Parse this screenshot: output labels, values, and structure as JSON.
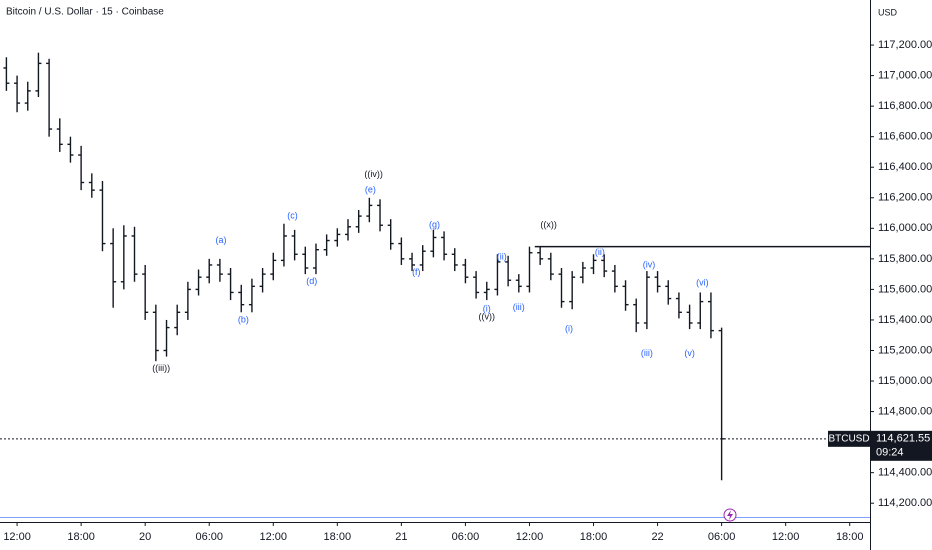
{
  "chart_data": {
    "type": "ohlc",
    "title": "Bitcoin / U.S. Dollar · 15 · Coinbase",
    "currency": "USD",
    "color": "#131722",
    "x": [
      -1,
      0,
      1,
      2,
      3,
      4,
      5,
      6,
      7,
      8,
      9,
      10,
      11,
      12,
      13,
      14,
      15,
      16,
      17,
      18,
      19,
      20,
      21,
      22,
      23,
      24,
      25,
      26,
      27,
      28,
      29,
      30,
      31,
      32,
      33,
      34,
      35,
      36,
      37,
      38,
      39,
      40,
      41,
      42,
      43,
      44,
      45,
      46,
      47,
      48,
      49,
      50,
      51,
      52,
      53,
      54,
      55,
      56,
      57,
      58,
      59,
      60,
      61,
      62,
      63,
      64,
      65,
      66
    ],
    "open": [
      117050,
      116950,
      116820,
      116900,
      117080,
      116650,
      116550,
      116480,
      116300,
      116250,
      115900,
      115650,
      115950,
      115700,
      115450,
      115200,
      115350,
      115450,
      115600,
      115680,
      115760,
      115700,
      115580,
      115500,
      115620,
      115700,
      115790,
      115950,
      115830,
      115740,
      115860,
      115920,
      115960,
      116010,
      116080,
      116150,
      116020,
      115900,
      115800,
      115760,
      115850,
      115940,
      115830,
      115760,
      115680,
      115580,
      115600,
      115780,
      115660,
      115620,
      115840,
      115800,
      115700,
      115520,
      115680,
      115740,
      115790,
      115720,
      115620,
      115500,
      115380,
      115680,
      115620,
      115540,
      115450,
      115380,
      115520,
      115330
    ],
    "high": [
      117120,
      117000,
      116960,
      117150,
      117110,
      116720,
      116600,
      116540,
      116360,
      116310,
      116000,
      116020,
      116010,
      115760,
      115500,
      115400,
      115500,
      115650,
      115730,
      115800,
      115800,
      115740,
      115630,
      115670,
      115740,
      115840,
      116030,
      115990,
      115880,
      115900,
      115960,
      116000,
      116060,
      116120,
      116200,
      116190,
      116060,
      115940,
      115840,
      115890,
      115990,
      115980,
      115870,
      115800,
      115720,
      115650,
      115830,
      115820,
      115700,
      115880,
      115880,
      115840,
      115740,
      115720,
      115780,
      115830,
      115830,
      115760,
      115660,
      115540,
      115720,
      115720,
      115660,
      115580,
      115500,
      115580,
      115580,
      115350
    ],
    "low": [
      116900,
      116760,
      116770,
      116860,
      116600,
      116500,
      116430,
      116250,
      116200,
      115850,
      115480,
      115600,
      115650,
      115400,
      115130,
      115160,
      115300,
      115400,
      115560,
      115640,
      115650,
      115530,
      115450,
      115450,
      115580,
      115660,
      115750,
      115790,
      115700,
      115700,
      115820,
      115880,
      115920,
      115970,
      116040,
      115980,
      115860,
      115760,
      115720,
      115720,
      115810,
      115790,
      115720,
      115640,
      115540,
      115530,
      115560,
      115620,
      115580,
      115580,
      115760,
      115660,
      115480,
      115470,
      115640,
      115700,
      115680,
      115580,
      115460,
      115320,
      115340,
      115580,
      115500,
      115410,
      115340,
      115340,
      115280,
      114350
    ],
    "close": [
      116950,
      116820,
      116900,
      117080,
      116650,
      116550,
      116480,
      116300,
      116250,
      115900,
      115650,
      115950,
      115700,
      115450,
      115200,
      115350,
      115450,
      115600,
      115680,
      115760,
      115700,
      115580,
      115500,
      115620,
      115700,
      115790,
      115950,
      115830,
      115740,
      115860,
      115920,
      115960,
      116010,
      116080,
      116150,
      116020,
      115900,
      115800,
      115760,
      115850,
      115940,
      115830,
      115760,
      115680,
      115580,
      115600,
      115780,
      115660,
      115620,
      115840,
      115800,
      115700,
      115520,
      115680,
      115740,
      115790,
      115720,
      115620,
      115500,
      115380,
      115680,
      115620,
      115540,
      115450,
      115380,
      115520,
      115330,
      114621.55
    ],
    "xlim": [
      -1.6,
      79.9
    ],
    "ylim": [
      114090,
      117495
    ],
    "xticks": [
      {
        "value": 0,
        "label": "12:00"
      },
      {
        "value": 6,
        "label": "18:00"
      },
      {
        "value": 12,
        "label": "20"
      },
      {
        "value": 18,
        "label": "06:00"
      },
      {
        "value": 24,
        "label": "12:00"
      },
      {
        "value": 30,
        "label": "18:00"
      },
      {
        "value": 36,
        "label": "21"
      },
      {
        "value": 42,
        "label": "06:00"
      },
      {
        "value": 48,
        "label": "12:00"
      },
      {
        "value": 54,
        "label": "18:00"
      },
      {
        "value": 60,
        "label": "22"
      },
      {
        "value": 66,
        "label": "06:00"
      },
      {
        "value": 72,
        "label": "12:00"
      },
      {
        "value": 78,
        "label": "18:00"
      }
    ],
    "yticks": [
      {
        "value": 114200,
        "label": "114,200.00"
      },
      {
        "value": 114400,
        "label": "114,400.00"
      },
      {
        "value": 114600,
        "label": "114,600.00"
      },
      {
        "value": 114800,
        "label": "114,800.00"
      },
      {
        "value": 115000,
        "label": "115,000.00"
      },
      {
        "value": 115200,
        "label": "115,200.00"
      },
      {
        "value": 115400,
        "label": "115,400.00"
      },
      {
        "value": 115600,
        "label": "115,600.00"
      },
      {
        "value": 115800,
        "label": "115,800.00"
      },
      {
        "value": 116000,
        "label": "116,000.00"
      },
      {
        "value": 116200,
        "label": "116,200.00"
      },
      {
        "value": 116400,
        "label": "116,400.00"
      },
      {
        "value": 116600,
        "label": "116,600.00"
      },
      {
        "value": 116800,
        "label": "116,800.00"
      },
      {
        "value": 117000,
        "label": "117,000.00"
      },
      {
        "value": 117200,
        "label": "117,200.00"
      }
    ],
    "level": {
      "value": 115880,
      "start": 48.5
    },
    "last_price": {
      "symbol": "BTCUSD",
      "value": 114621.55,
      "label": "114,621.55",
      "countdown": "09:24"
    },
    "annotations": [
      {
        "text": "((iii))",
        "x": 13.5,
        "y": 115080,
        "color": "#131722"
      },
      {
        "text": "(a)",
        "x": 19.1,
        "y": 115920,
        "color": "#2962ff"
      },
      {
        "text": "(b)",
        "x": 21.2,
        "y": 115400,
        "color": "#2962ff"
      },
      {
        "text": "(c)",
        "x": 25.8,
        "y": 116080,
        "color": "#2962ff"
      },
      {
        "text": "(d)",
        "x": 27.6,
        "y": 115650,
        "color": "#2962ff"
      },
      {
        "text": "((iv))",
        "x": 33.4,
        "y": 116350,
        "color": "#131722"
      },
      {
        "text": "(e)",
        "x": 33.1,
        "y": 116250,
        "color": "#2962ff"
      },
      {
        "text": "(f)",
        "x": 37.4,
        "y": 115710,
        "color": "#2962ff"
      },
      {
        "text": "(g)",
        "x": 39.1,
        "y": 116020,
        "color": "#2962ff"
      },
      {
        "text": "(i)",
        "x": 44,
        "y": 115470,
        "color": "#2962ff"
      },
      {
        "text": "((v))",
        "x": 44,
        "y": 115420,
        "color": "#131722"
      },
      {
        "text": "(ii)",
        "x": 45.4,
        "y": 115810,
        "color": "#2962ff"
      },
      {
        "text": "(iii)",
        "x": 47,
        "y": 115480,
        "color": "#2962ff"
      },
      {
        "text": "((x))",
        "x": 49.8,
        "y": 116020,
        "color": "#131722"
      },
      {
        "text": "(i)",
        "x": 51.7,
        "y": 115340,
        "color": "#2962ff"
      },
      {
        "text": "(ii)",
        "x": 54.6,
        "y": 115840,
        "color": "#2962ff"
      },
      {
        "text": "(iii)",
        "x": 59,
        "y": 115180,
        "color": "#2962ff"
      },
      {
        "text": "(iv)",
        "x": 59.2,
        "y": 115760,
        "color": "#2962ff"
      },
      {
        "text": "(v)",
        "x": 63,
        "y": 115180,
        "color": "#2962ff"
      },
      {
        "text": "(vi)",
        "x": 64.2,
        "y": 115640,
        "color": "#2962ff"
      }
    ]
  }
}
